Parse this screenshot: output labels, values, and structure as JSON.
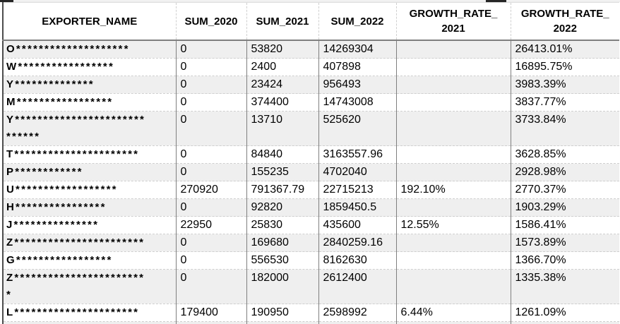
{
  "table": {
    "header": {
      "columns": [
        {
          "label": "EXPORTER_NAME",
          "lines": [
            "EXPORTER_NAME",
            ""
          ]
        },
        {
          "label": "SUM_2020",
          "lines": [
            "SUM_2020",
            ""
          ]
        },
        {
          "label": "SUM_2021",
          "lines": [
            "SUM_2021",
            ""
          ]
        },
        {
          "label": "SUM_2022",
          "lines": [
            "SUM_2022",
            ""
          ]
        },
        {
          "label": "GROWTH_RATE_2021",
          "lines": [
            "GROWTH_RATE_",
            "2021"
          ]
        },
        {
          "label": "GROWTH_RATE_2022",
          "lines": [
            "GROWTH_RATE_",
            "2022"
          ]
        }
      ]
    },
    "rows": [
      {
        "name": "O********************",
        "name2": "",
        "sum_2020": "0",
        "sum_2021": "53820",
        "sum_2022": "14269304",
        "growth_2021": "",
        "growth_2022": "26413.01%"
      },
      {
        "name": "W*****************",
        "name2": "",
        "sum_2020": "0",
        "sum_2021": "2400",
        "sum_2022": "407898",
        "growth_2021": "",
        "growth_2022": "16895.75%"
      },
      {
        "name": "Y**************",
        "name2": "",
        "sum_2020": "0",
        "sum_2021": "23424",
        "sum_2022": "956493",
        "growth_2021": "",
        "growth_2022": "3983.39%"
      },
      {
        "name": "M*****************",
        "name2": "",
        "sum_2020": "0",
        "sum_2021": "374400",
        "sum_2022": "14743008",
        "growth_2021": "",
        "growth_2022": "3837.77%"
      },
      {
        "name": "Y***********************",
        "name2": "******",
        "sum_2020": "0",
        "sum_2021": "13710",
        "sum_2022": "525620",
        "growth_2021": "",
        "growth_2022": "3733.84%"
      },
      {
        "name": "T**********************",
        "name2": "",
        "sum_2020": "0",
        "sum_2021": "84840",
        "sum_2022": "3163557.96",
        "growth_2021": "",
        "growth_2022": "3628.85%"
      },
      {
        "name": "P************",
        "name2": "",
        "sum_2020": "0",
        "sum_2021": "155235",
        "sum_2022": "4702040",
        "growth_2021": "",
        "growth_2022": "2928.98%"
      },
      {
        "name": "U******************",
        "name2": "",
        "sum_2020": "270920",
        "sum_2021": "791367.79",
        "sum_2022": "22715213",
        "growth_2021": "192.10%",
        "growth_2022": "2770.37%"
      },
      {
        "name": "H****************",
        "name2": "",
        "sum_2020": "0",
        "sum_2021": "92820",
        "sum_2022": "1859450.5",
        "growth_2021": "",
        "growth_2022": "1903.29%"
      },
      {
        "name": "J***************",
        "name2": "",
        "sum_2020": "22950",
        "sum_2021": "25830",
        "sum_2022": "435600",
        "growth_2021": "12.55%",
        "growth_2022": "1586.41%"
      },
      {
        "name": "Z***********************",
        "name2": "",
        "sum_2020": "0",
        "sum_2021": "169680",
        "sum_2022": "2840259.16",
        "growth_2021": "",
        "growth_2022": "1573.89%"
      },
      {
        "name": "G*****************",
        "name2": "",
        "sum_2020": "0",
        "sum_2021": "556530",
        "sum_2022": "8162630",
        "growth_2021": "",
        "growth_2022": "1366.70%"
      },
      {
        "name": "Z***********************",
        "name2": "*",
        "sum_2020": "0",
        "sum_2021": "182000",
        "sum_2022": "2612400",
        "growth_2021": "",
        "growth_2022": "1335.38%"
      },
      {
        "name": "L**********************",
        "name2": "",
        "sum_2020": "179400",
        "sum_2021": "190950",
        "sum_2022": "2598992",
        "growth_2021": "6.44%",
        "growth_2022": "1261.09%"
      }
    ],
    "colors": {
      "row_stripe": "#efefef",
      "grid_vertical": "#7f7f7f",
      "grid_horizontal_dashed": "#cfcfcf",
      "header_separator": "#7f7f7f",
      "outer_border": "#4d4d4d",
      "text": "#000000"
    }
  }
}
